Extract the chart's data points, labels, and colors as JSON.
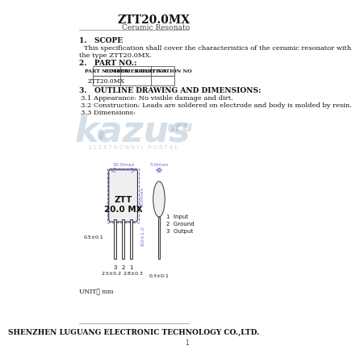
{
  "title": "ZTT20.0MX",
  "subtitle": "Ceramic Resonato",
  "bg_color": "#ffffff",
  "text_color": "#000000",
  "section1_header": "1.   SCOPE",
  "section1_body1": "This specification shall cover the characteristics of the ceramic resonator with",
  "section1_body2": "the type ZTT20.0MX.",
  "section2_header": "2.   PART NO.:",
  "table_headers": [
    "PART NUMBER",
    "CUSTOMER PART NO",
    "SPECIFICATION NO"
  ],
  "table_row": [
    "ZTT20.0MX",
    "",
    ""
  ],
  "section3_header": "3.   OUTLINE DRAWING AND DIMENSIONS:",
  "section3_1": "3.1 Appearance: No visible damage and dirt.",
  "section3_2": "3.2 Construction: Leads are soldered on electrode and body is molded by resin.",
  "section3_3": "3.3 Dimensions:",
  "unit_label": "UNIT： mm",
  "footer": "SHENZHEN LUGUANG ELECTRONIC TECHNOLOGY CO.,LTD.",
  "page_num": "1",
  "dim_label_top": "10.0max",
  "dim_label_top2": "5.0max",
  "dim_label_right": "8.0max",
  "dim_label_bottom_left": "2.5±0.2",
  "dim_label_bottom_right": "2.8±0.3",
  "dim_label_left": "0.5±0.1",
  "dim_label_right2": "8.0±1.0",
  "dim_label_foot": "0.3±0.1",
  "component_label1": "ZTT",
  "component_label2": "20.0 MX",
  "lead_labels": [
    "3",
    "2",
    "1"
  ],
  "pin_labels": [
    "1  Input",
    "2  Ground",
    "3  Output"
  ],
  "watermark_color": "#c8d8e8",
  "table_border_color": "#555555",
  "dim_line_color": "#7070cc",
  "kazus_color": "#a0b8cc",
  "watermark_text": "E L E K T R O N N Y J   P O R T A L"
}
